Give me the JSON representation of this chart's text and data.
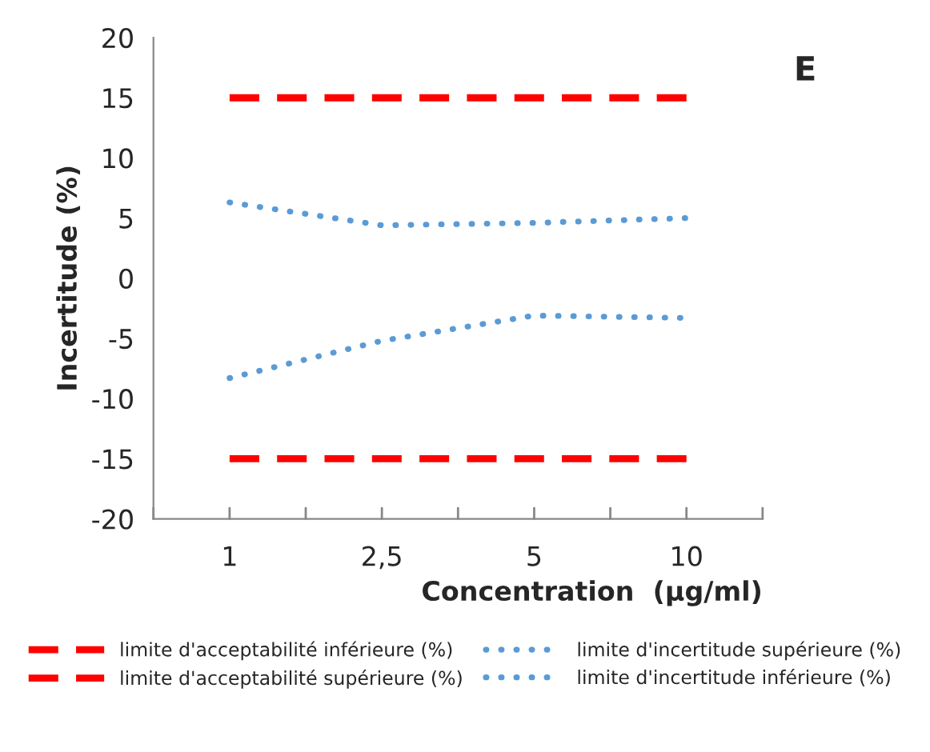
{
  "chart_data": {
    "type": "line",
    "xlabel": "Concentration  (µg/ml)",
    "ylabel": "Incertitude (%)",
    "categories": [
      "1",
      "2,5",
      "5",
      "10"
    ],
    "ylim": [
      -20,
      20
    ],
    "yticks": [
      -20,
      -15,
      -10,
      -5,
      0,
      5,
      10,
      15,
      20
    ],
    "grid": false,
    "legend": "bottom",
    "annotations": [
      "E"
    ],
    "series": [
      {
        "name": "limite d'acceptabilité inférieure (%)",
        "color": "#ff0000",
        "line_style": "dashed",
        "values": [
          -15,
          -15,
          -15,
          -15
        ]
      },
      {
        "name": "limite d'acceptabilité supérieure (%)",
        "color": "#ff0000",
        "line_style": "dashed",
        "values": [
          15,
          15,
          15,
          15
        ]
      },
      {
        "name": "limite d'incertitude supérieure (%)",
        "color": "#5b9bd5",
        "line_style": "dotted",
        "values": [
          6.3,
          4.4,
          4.6,
          5.0
        ]
      },
      {
        "name": "limite d'incertitude inférieure (%)",
        "color": "#5b9bd5",
        "line_style": "dotted",
        "values": [
          -8.3,
          -5.2,
          -3.1,
          -3.3
        ]
      }
    ]
  }
}
